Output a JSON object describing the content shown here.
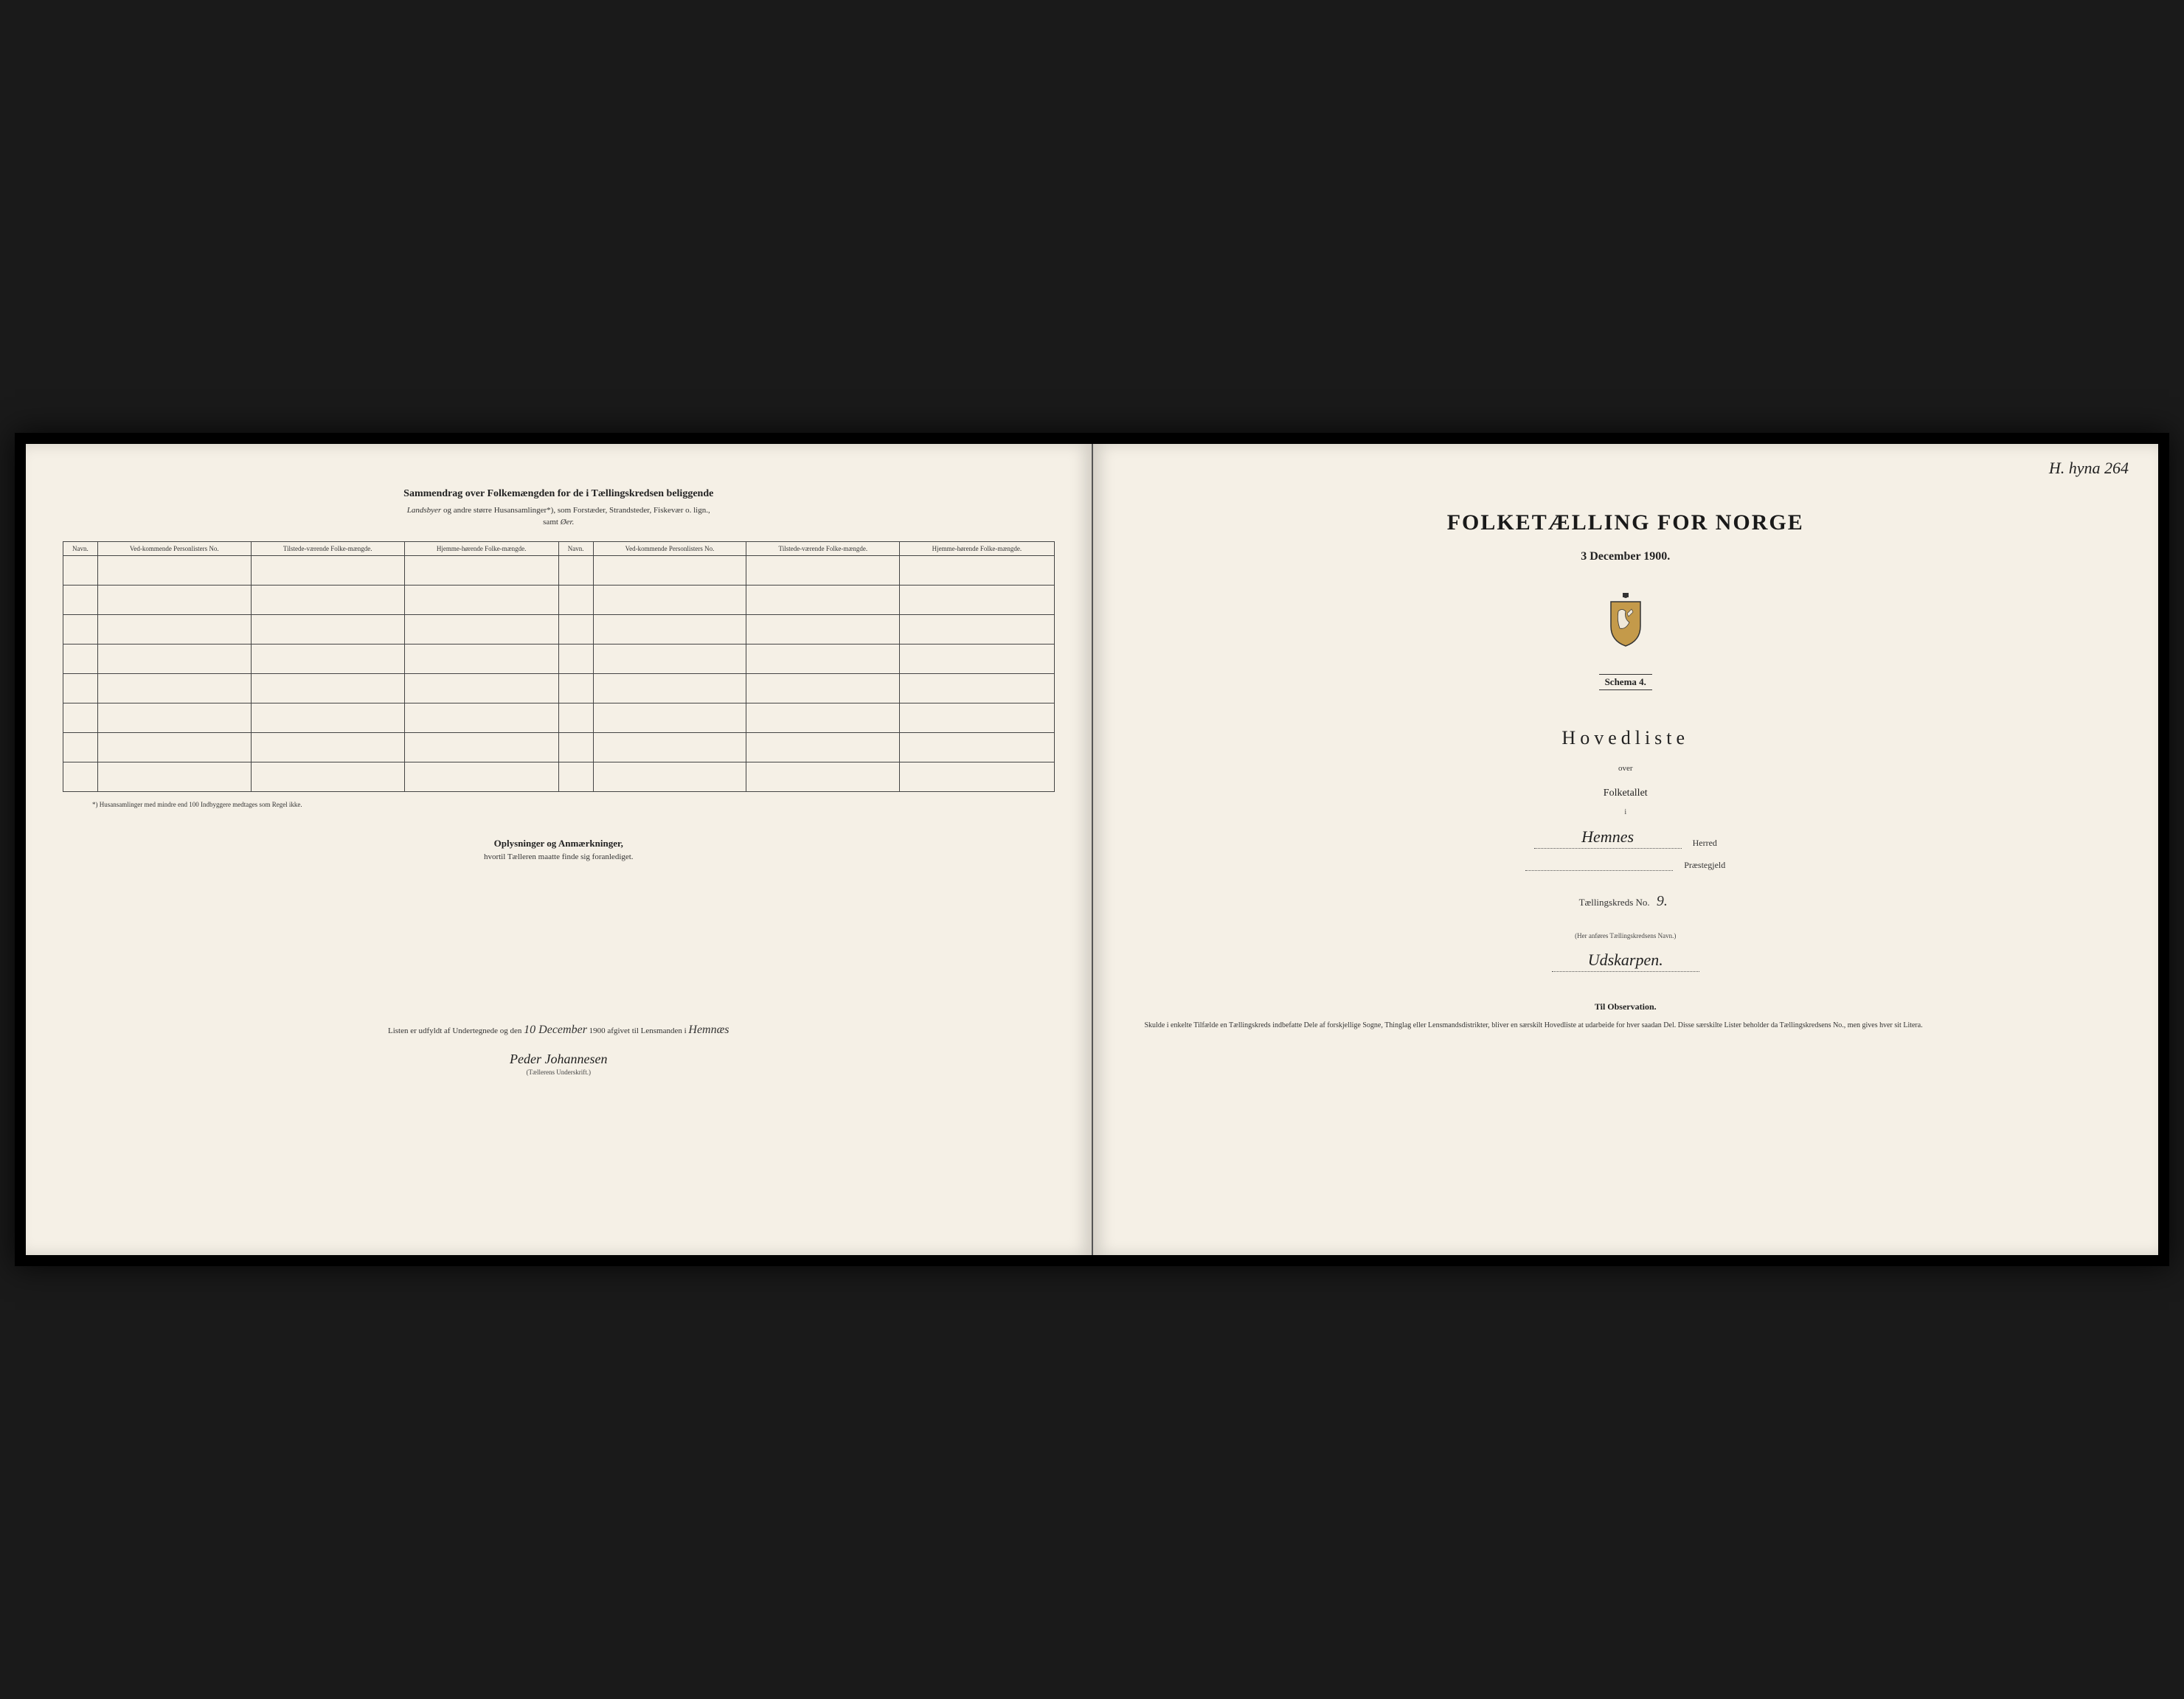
{
  "page_number": "H. hyna 264",
  "left": {
    "title": "Sammendrag over Folkemængden for de i Tællingskredsen beliggende",
    "subtitle1_before": "Landsbyer ",
    "subtitle1_italic": "og andre større Husansamlinger*),",
    "subtitle1_after": " som Forstæder, Strandsteder, Fiskevær o. lign.,",
    "subtitle2": "samt Øer.",
    "table": {
      "headers": [
        "Navn.",
        "Ved-kommende Personlisters No.",
        "Tilstede-værende Folke-mængde.",
        "Hjemme-hørende Folke-mængde.",
        "Navn.",
        "Ved-kommende Personlisters No.",
        "Tilstede-værende Folke-mængde.",
        "Hjemme-hørende Folke-mængde."
      ],
      "blank_rows": 8
    },
    "footnote": "*) Husansamlinger med mindre end 100 Indbyggere medtages som Regel ikke.",
    "section_heading": "Oplysninger og Anmærkninger,",
    "section_sub": "hvortil Tælleren maatte finde sig foranlediget.",
    "sig_prefix": "Listen er udfyldt af Undertegnede og den ",
    "sig_date": "10 December",
    "sig_mid": " 1900 afgivet til Lensmanden i ",
    "sig_place": "Hemnæs",
    "enumerator": "Peder Johannesen",
    "sig_label": "(Tællerens Underskrift.)"
  },
  "right": {
    "main_title": "FOLKETÆLLING FOR NORGE",
    "date": "3 December 1900.",
    "schema": "Schema 4.",
    "hovedliste": "Hovedliste",
    "over": "over",
    "folketallet": "Folketallet",
    "small_i": "i",
    "herred_value": "Hemnes",
    "herred_label": "Herred",
    "praestegjeld_value": "",
    "praestegjeld_label": "Præstegjeld",
    "kreds_prefix": "Tællingskreds No.",
    "kreds_num": "9.",
    "note_small": "(Her anføres Tællingskredsens Navn.)",
    "kreds_name": "Udskarpen.",
    "obs_title": "Til Observation.",
    "obs_text": "Skulde i enkelte Tilfælde en Tællingskreds indbefatte Dele af forskjellige Sogne, Thinglag eller Lensmandsdistrikter, bliver en særskilt Hovedliste at udarbeide for hver saadan Del. Disse særskilte Lister beholder da Tællingskredsens No., men gives hver sit Litera."
  },
  "colors": {
    "paper": "#f5f0e6",
    "ink": "#222222",
    "border": "#444444",
    "background": "#1a1a1a"
  }
}
